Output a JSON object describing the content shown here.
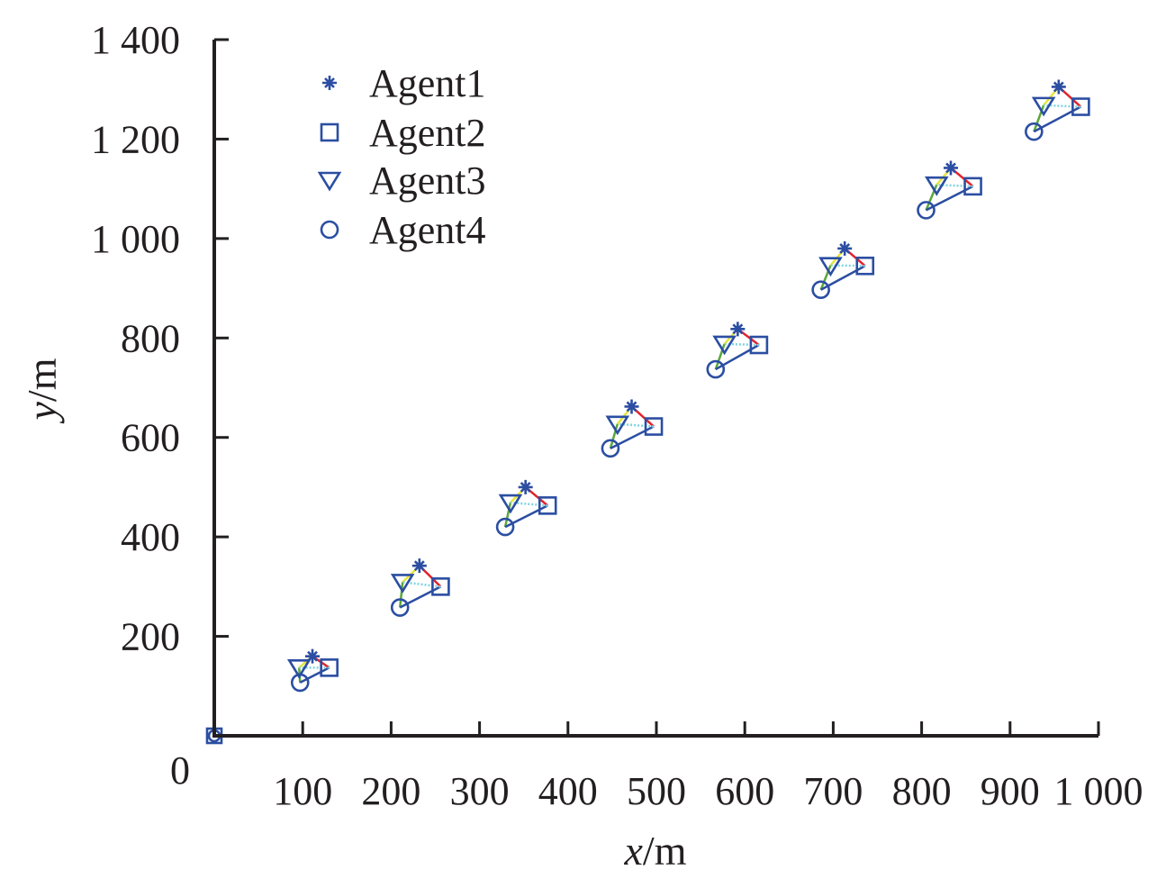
{
  "chart_data": {
    "type": "scatter",
    "xlabel": {
      "var": "x",
      "unit": "/m"
    },
    "ylabel": {
      "var": "y",
      "unit": "/m"
    },
    "xlim": [
      0,
      1000
    ],
    "ylim": [
      0,
      1400
    ],
    "x_ticks": [
      {
        "value": 100,
        "label": "100"
      },
      {
        "value": 200,
        "label": "200"
      },
      {
        "value": 300,
        "label": "300"
      },
      {
        "value": 400,
        "label": "400"
      },
      {
        "value": 500,
        "label": "500"
      },
      {
        "value": 600,
        "label": "600"
      },
      {
        "value": 700,
        "label": "700"
      },
      {
        "value": 800,
        "label": "800"
      },
      {
        "value": 900,
        "label": "900"
      },
      {
        "value": 1000,
        "label": "1 000"
      }
    ],
    "y_ticks": [
      {
        "value": 200,
        "label": "200"
      },
      {
        "value": 400,
        "label": "400"
      },
      {
        "value": 600,
        "label": "600"
      },
      {
        "value": 800,
        "label": "800"
      },
      {
        "value": 1000,
        "label": "1 000"
      },
      {
        "value": 1200,
        "label": "1 200"
      },
      {
        "value": 1400,
        "label": "1 400"
      }
    ],
    "origin_label": "0",
    "grid": false,
    "legend_position": "top-left",
    "series": [
      {
        "name": "Agent1",
        "marker": "star",
        "color": "#2b4ea2",
        "x": [
          111,
          232,
          352,
          472,
          592,
          713,
          833,
          955
        ],
        "y": [
          160,
          342,
          500,
          662,
          818,
          980,
          1142,
          1305
        ]
      },
      {
        "name": "Agent2",
        "marker": "square",
        "color": "#2b4ea2",
        "x": [
          130,
          256,
          377,
          497,
          616,
          736,
          858,
          980
        ],
        "y": [
          137,
          300,
          463,
          622,
          786,
          945,
          1105,
          1265
        ]
      },
      {
        "name": "Agent3",
        "marker": "triangle",
        "color": "#2b4ea2",
        "x": [
          96,
          213,
          335,
          456,
          577,
          697,
          817,
          938
        ],
        "y": [
          137,
          309,
          469,
          627,
          788,
          946,
          1108,
          1268
        ]
      },
      {
        "name": "Agent4",
        "marker": "circle",
        "color": "#2b4ea2",
        "x": [
          97,
          210,
          329,
          448,
          567,
          686,
          805,
          927
        ],
        "y": [
          107,
          258,
          420,
          578,
          737,
          897,
          1057,
          1215
        ]
      }
    ],
    "extra_points": [
      {
        "x": 0,
        "y": 0
      }
    ],
    "edges": [
      {
        "from": "Agent1",
        "to": "Agent2",
        "color": "#e0242e"
      },
      {
        "from": "Agent1",
        "to": "Agent3",
        "color": "#e6e63a"
      },
      {
        "from": "Agent3",
        "to": "Agent4",
        "color": "#5aa63a"
      },
      {
        "from": "Agent2",
        "to": "Agent4",
        "color": "#2b4ea2"
      },
      {
        "from": "Agent2",
        "to": "Agent3",
        "color": "#7fd3e0"
      }
    ]
  }
}
